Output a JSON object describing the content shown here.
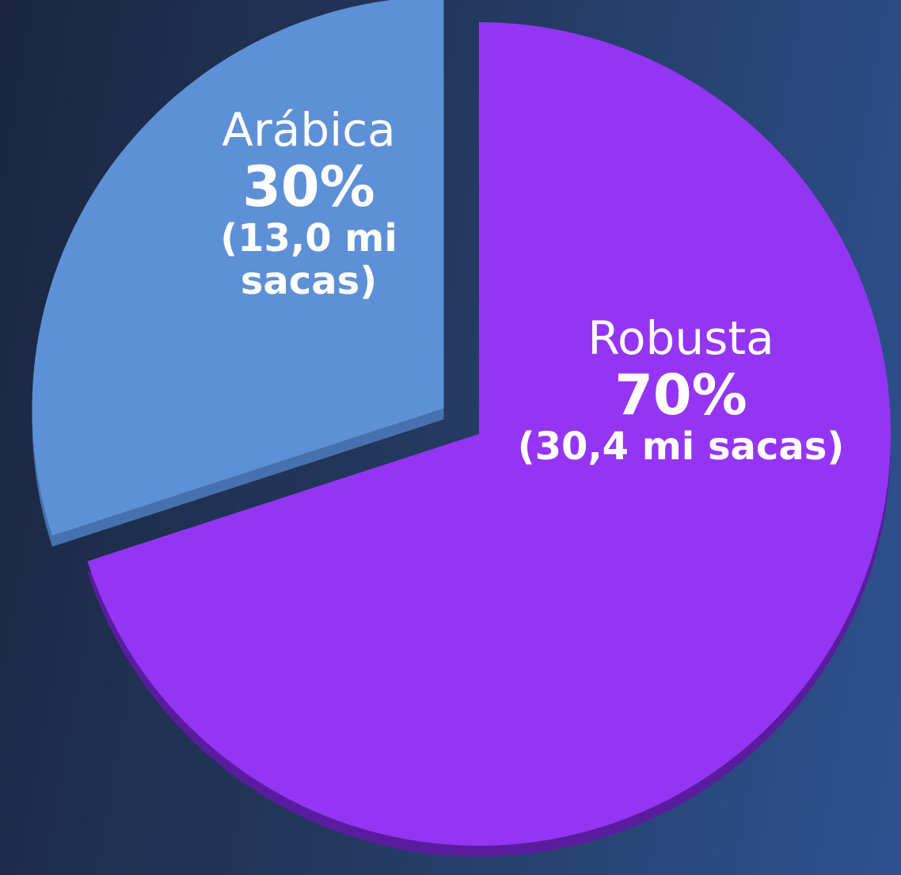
{
  "chart_data": {
    "type": "pie",
    "categories": [
      "Robusta",
      "Arábica"
    ],
    "values": [
      70,
      30
    ],
    "value_labels": [
      "70%",
      "30%"
    ],
    "detail_labels": [
      "(30,4 mi sacas)",
      "(13,0 mi sacas)"
    ],
    "colors": [
      "#9435f3",
      "#5d90d6"
    ],
    "side_colors": [
      "#5a1c9e",
      "#4671ae"
    ],
    "explode": [
      false,
      true
    ]
  }
}
